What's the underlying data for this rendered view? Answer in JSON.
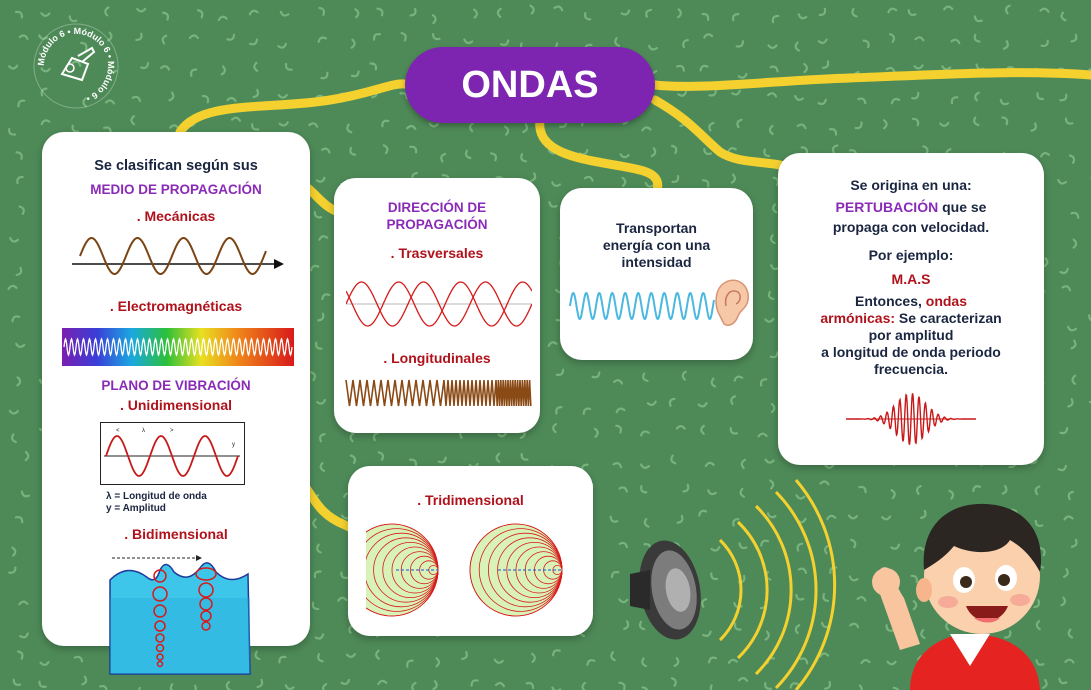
{
  "title": "ONDAS",
  "logo": {
    "text": "Módulo 6 • Módulo 6 • Módulo 6 •"
  },
  "clasificacion": {
    "intro": "Se clasifican según sus",
    "medio": "MEDIO DE PROPAGACIÓN",
    "mecanicas": ". Mecánicas",
    "electromagneticas": ". Electromagnéticas",
    "plano": "PLANO DE VIBRACIÓN",
    "unidimensional": ". Unidimensional",
    "lambda_label": "λ = Longitud de onda",
    "y_label": "y = Amplitud",
    "bidimensional": ". Bidimensional"
  },
  "direccion": {
    "heading_line1": "DIRECCIÓN DE",
    "heading_line2": "PROPAGACIÓN",
    "trasversales": ". Trasversales",
    "longitudinales": ". Longitudinales"
  },
  "energia": {
    "line1": "Transportan",
    "line2": "energía con una",
    "line3": "intensidad"
  },
  "origen": {
    "line1": "Se origina en una:",
    "pertubacion": "PERTUBACIÓN",
    "line2_rest": " que se",
    "line3": "propaga con velocidad.",
    "ejemplo": "Por ejemplo:",
    "mas": "M.A.S",
    "entonces": "Entonces, ",
    "ondas": "ondas",
    "armonicas": "armónicas:",
    "line_se": " Se caracterizan",
    "line_amp": "por amplitud",
    "line_long": "a longitud de onda periodo",
    "line_freq": "frecuencia."
  },
  "tridimensional": {
    "label": ". Tridimensional"
  },
  "colors": {
    "background": "#4e8a58",
    "purple": "#7d24b0",
    "heading_purple": "#8a2bb8",
    "red": "#b0121c",
    "navy": "#1a2540",
    "connector": "#f4d12f"
  }
}
